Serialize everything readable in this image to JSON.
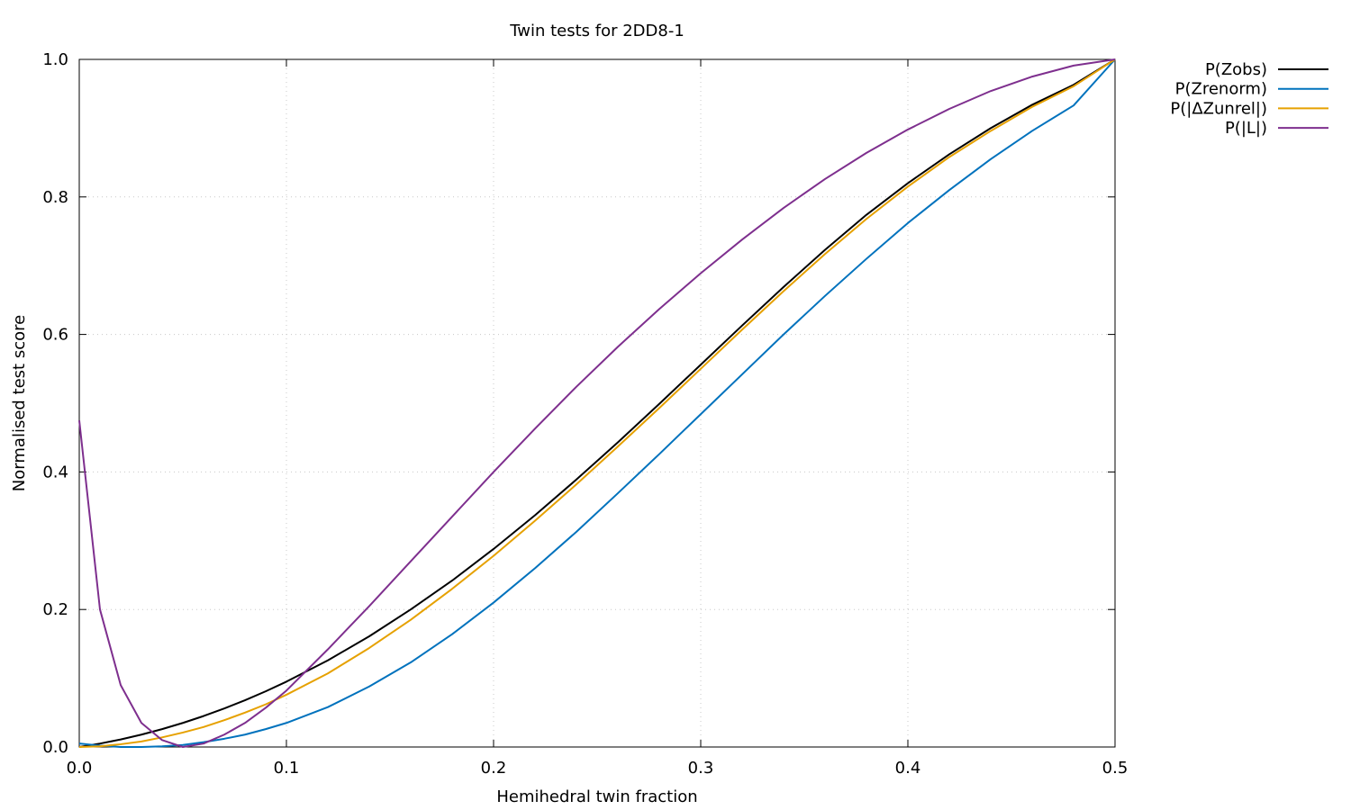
{
  "chart_data": {
    "type": "line",
    "title": "Twin tests for 2DD8-1",
    "xlabel": "Hemihedral twin fraction",
    "ylabel": "Normalised test score",
    "xlim": [
      0,
      0.5
    ],
    "ylim": [
      0,
      1
    ],
    "grid": true,
    "legend_position": "top-right, outside plot area",
    "x_ticks": [
      "0.0",
      "0.1",
      "0.2",
      "0.3",
      "0.4",
      "0.5"
    ],
    "y_ticks": [
      "0.0",
      "0.2",
      "0.4",
      "0.6",
      "0.8",
      "1.0"
    ],
    "x": [
      0,
      0.01,
      0.02,
      0.03,
      0.04,
      0.05,
      0.06,
      0.07,
      0.08,
      0.09,
      0.1,
      0.12,
      0.14,
      0.16,
      0.18,
      0.2,
      0.22,
      0.24,
      0.26,
      0.28,
      0.3,
      0.32,
      0.34,
      0.36,
      0.38,
      0.4,
      0.42,
      0.44,
      0.46,
      0.48,
      0.5
    ],
    "series": [
      {
        "name": "P(Zobs)",
        "color": "#000000",
        "values": [
          0.0,
          0.005,
          0.011,
          0.018,
          0.026,
          0.035,
          0.045,
          0.056,
          0.068,
          0.081,
          0.095,
          0.126,
          0.161,
          0.2,
          0.242,
          0.288,
          0.337,
          0.389,
          0.443,
          0.499,
          0.556,
          0.613,
          0.669,
          0.723,
          0.774,
          0.82,
          0.862,
          0.9,
          0.934,
          0.963,
          1.0
        ]
      },
      {
        "name": "P(Zrenorm)",
        "color": "#0072bd",
        "values": [
          0.005,
          0.002,
          0.0,
          0.0,
          0.001,
          0.003,
          0.007,
          0.012,
          0.018,
          0.026,
          0.035,
          0.058,
          0.088,
          0.123,
          0.164,
          0.21,
          0.26,
          0.313,
          0.369,
          0.426,
          0.484,
          0.542,
          0.6,
          0.656,
          0.71,
          0.762,
          0.81,
          0.855,
          0.896,
          0.933,
          1.0
        ]
      },
      {
        "name": "P(|ΔZunrel|)",
        "color": "#e6a100",
        "values": [
          0.0,
          0.001,
          0.004,
          0.008,
          0.014,
          0.021,
          0.029,
          0.039,
          0.05,
          0.062,
          0.076,
          0.107,
          0.144,
          0.185,
          0.23,
          0.278,
          0.329,
          0.382,
          0.437,
          0.493,
          0.55,
          0.607,
          0.663,
          0.717,
          0.768,
          0.815,
          0.858,
          0.896,
          0.931,
          0.961,
          1.0
        ]
      },
      {
        "name": "P(|L|)",
        "color": "#7e2f8e",
        "values": [
          0.475,
          0.2,
          0.09,
          0.035,
          0.01,
          0.0,
          0.005,
          0.018,
          0.035,
          0.057,
          0.082,
          0.142,
          0.205,
          0.27,
          0.335,
          0.4,
          0.463,
          0.524,
          0.582,
          0.637,
          0.689,
          0.738,
          0.784,
          0.826,
          0.864,
          0.898,
          0.928,
          0.954,
          0.975,
          0.991,
          1.0
        ]
      }
    ]
  }
}
